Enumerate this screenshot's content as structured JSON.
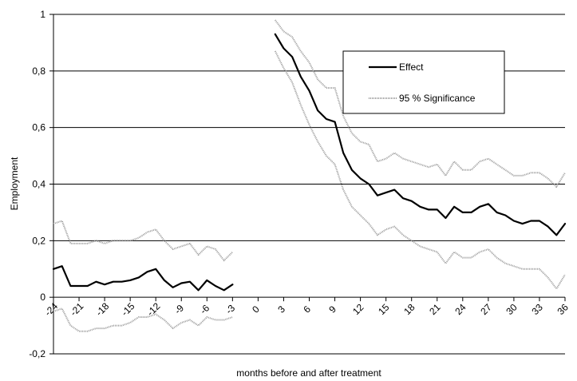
{
  "chart_data": {
    "type": "line",
    "title": "",
    "xlabel": "months before and after treatment",
    "ylabel": "Employment",
    "xlim": [
      -24,
      36
    ],
    "ylim": [
      -0.2,
      1.0
    ],
    "y_ticks": [
      "-0,2",
      "0",
      "0,2",
      "0,4",
      "0,6",
      "0,8",
      "1"
    ],
    "y_tick_values": [
      -0.2,
      0,
      0.2,
      0.4,
      0.6,
      0.8,
      1.0
    ],
    "x_ticks": [
      "-24",
      "-21",
      "-18",
      "-15",
      "-12",
      "-9",
      "-6",
      "-3",
      "0",
      "3",
      "6",
      "9",
      "12",
      "15",
      "18",
      "21",
      "24",
      "27",
      "30",
      "33",
      "36"
    ],
    "x_tick_values": [
      -24,
      -21,
      -18,
      -15,
      -12,
      -9,
      -6,
      -3,
      0,
      3,
      6,
      9,
      12,
      15,
      18,
      21,
      24,
      27,
      30,
      33,
      36
    ],
    "grid": "horizontal",
    "legend_position": "top-right",
    "series": [
      {
        "name": "Effect",
        "color": "#000000",
        "style": "solid",
        "segments": [
          {
            "x": [
              -24,
              -23,
              -22,
              -21,
              -20,
              -19,
              -18,
              -17,
              -16,
              -15,
              -14,
              -13,
              -12,
              -11,
              -10,
              -9,
              -8,
              -7,
              -6,
              -5,
              -4,
              -3
            ],
            "y": [
              0.1,
              0.11,
              0.04,
              0.04,
              0.04,
              0.055,
              0.045,
              0.055,
              0.055,
              0.06,
              0.07,
              0.09,
              0.1,
              0.06,
              0.035,
              0.05,
              0.055,
              0.025,
              0.06,
              0.04,
              0.025,
              0.045
            ]
          },
          {
            "x": [
              2,
              3,
              4,
              5,
              6,
              7,
              8,
              9,
              10,
              11,
              12,
              13,
              14,
              15,
              16,
              17,
              18,
              19,
              20,
              21,
              22,
              23,
              24,
              25,
              26,
              27,
              28,
              29,
              30,
              31,
              32,
              33,
              34,
              35,
              36
            ],
            "y": [
              0.93,
              0.88,
              0.85,
              0.78,
              0.73,
              0.66,
              0.63,
              0.62,
              0.51,
              0.45,
              0.42,
              0.4,
              0.36,
              0.37,
              0.38,
              0.35,
              0.34,
              0.32,
              0.31,
              0.31,
              0.28,
              0.32,
              0.3,
              0.3,
              0.32,
              0.33,
              0.3,
              0.29,
              0.27,
              0.26,
              0.27,
              0.27,
              0.25,
              0.22,
              0.26
            ]
          }
        ]
      },
      {
        "name": "95 % Significance",
        "color": "#9a9a9a",
        "style": "dotted",
        "segments": [
          {
            "x": [
              -24,
              -23,
              -22,
              -21,
              -20,
              -19,
              -18,
              -17,
              -16,
              -15,
              -14,
              -13,
              -12,
              -11,
              -10,
              -9,
              -8,
              -7,
              -6,
              -5,
              -4,
              -3
            ],
            "y": [
              0.26,
              0.27,
              0.19,
              0.19,
              0.19,
              0.2,
              0.19,
              0.2,
              0.2,
              0.2,
              0.21,
              0.23,
              0.24,
              0.2,
              0.17,
              0.18,
              0.19,
              0.15,
              0.18,
              0.17,
              0.13,
              0.16
            ]
          },
          {
            "x": [
              -24,
              -23,
              -22,
              -21,
              -20,
              -19,
              -18,
              -17,
              -16,
              -15,
              -14,
              -13,
              -12,
              -11,
              -10,
              -9,
              -8,
              -7,
              -6,
              -5,
              -4,
              -3
            ],
            "y": [
              -0.05,
              -0.04,
              -0.1,
              -0.12,
              -0.12,
              -0.11,
              -0.11,
              -0.1,
              -0.1,
              -0.09,
              -0.07,
              -0.07,
              -0.06,
              -0.08,
              -0.11,
              -0.09,
              -0.08,
              -0.1,
              -0.07,
              -0.08,
              -0.08,
              -0.07
            ]
          },
          {
            "x": [
              2,
              3,
              4,
              5,
              6,
              7,
              8,
              9,
              10,
              11,
              12,
              13,
              14,
              15,
              16,
              17,
              18,
              19,
              20,
              21,
              22,
              23,
              24,
              25,
              26,
              27,
              28,
              29,
              30,
              31,
              32,
              33,
              34,
              35,
              36
            ],
            "y": [
              0.98,
              0.94,
              0.92,
              0.87,
              0.83,
              0.77,
              0.74,
              0.74,
              0.64,
              0.58,
              0.55,
              0.54,
              0.48,
              0.49,
              0.51,
              0.49,
              0.48,
              0.47,
              0.46,
              0.47,
              0.43,
              0.48,
              0.45,
              0.45,
              0.48,
              0.49,
              0.47,
              0.45,
              0.43,
              0.43,
              0.44,
              0.44,
              0.42,
              0.39,
              0.44
            ]
          },
          {
            "x": [
              2,
              3,
              4,
              5,
              6,
              7,
              8,
              9,
              10,
              11,
              12,
              13,
              14,
              15,
              16,
              17,
              18,
              19,
              20,
              21,
              22,
              23,
              24,
              25,
              26,
              27,
              28,
              29,
              30,
              31,
              32,
              33,
              34,
              35,
              36
            ],
            "y": [
              0.87,
              0.81,
              0.76,
              0.68,
              0.61,
              0.55,
              0.5,
              0.47,
              0.38,
              0.32,
              0.29,
              0.26,
              0.22,
              0.24,
              0.25,
              0.22,
              0.2,
              0.18,
              0.17,
              0.16,
              0.12,
              0.16,
              0.14,
              0.14,
              0.16,
              0.17,
              0.14,
              0.12,
              0.11,
              0.1,
              0.1,
              0.1,
              0.07,
              0.03,
              0.08
            ]
          }
        ]
      }
    ]
  }
}
